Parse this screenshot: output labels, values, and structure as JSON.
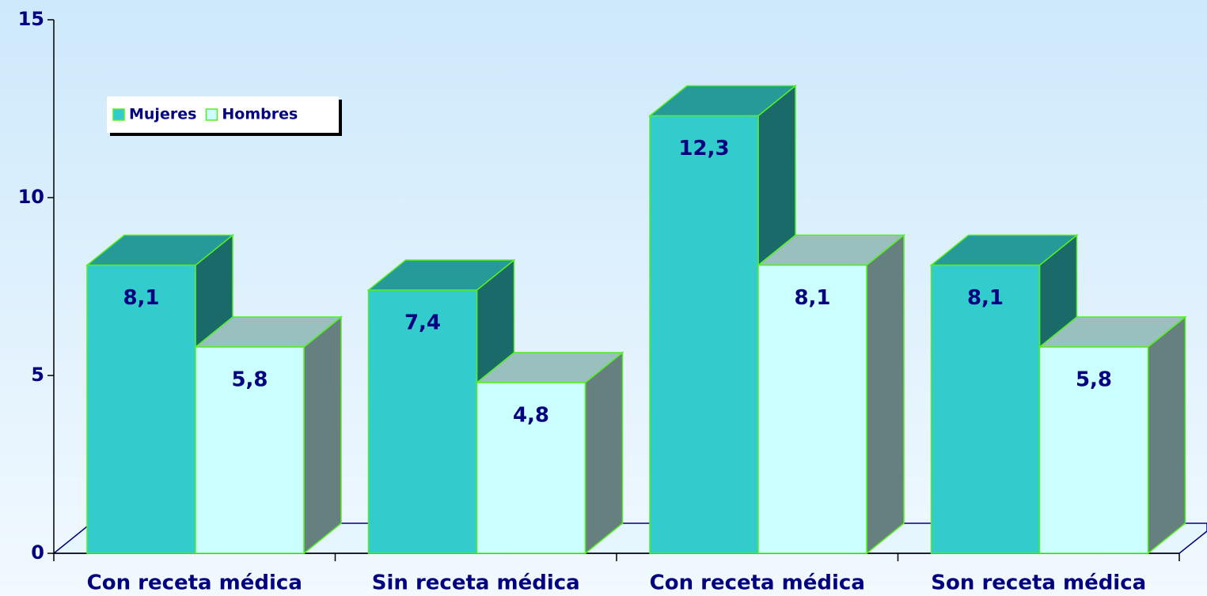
{
  "chart_data": {
    "type": "bar3d",
    "categories": [
      "Con receta médica",
      "Sin receta médica",
      "Con receta médica",
      "Son receta médica"
    ],
    "series": [
      {
        "name": "Mujeres",
        "color": "#33cccc",
        "values": [
          8.1,
          7.4,
          12.3,
          8.1
        ],
        "value_labels": [
          "8,1",
          "7,4",
          "12,3",
          "8,1"
        ]
      },
      {
        "name": "Hombres",
        "color": "#ccffff",
        "values": [
          5.8,
          4.8,
          8.1,
          5.8
        ],
        "value_labels": [
          "5,8",
          "4,8",
          "8,1",
          "5,8"
        ]
      }
    ],
    "ylim": [
      0,
      15
    ],
    "yticks": [
      0,
      5,
      10,
      15
    ],
    "legend": "upper left"
  }
}
